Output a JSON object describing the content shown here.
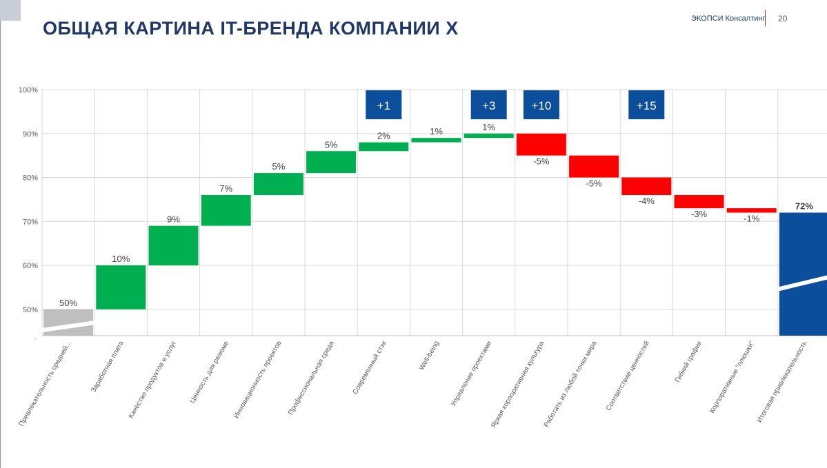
{
  "slide": {
    "title": "ОБЩАЯ КАРТИНА IT-БРЕНДА КОМПАНИИ X",
    "brand": "ЭКОПСИ Консалтинг",
    "page_number": "20"
  },
  "colors": {
    "title": "#1f3864",
    "positive": "#00b050",
    "negative": "#ff0000",
    "base": "#bfbfbf",
    "total": "#0b4f9c",
    "badge": "#0b4f9c",
    "grid": "#d9d9d9"
  },
  "chart_data": {
    "type": "waterfall",
    "title": "",
    "xlabel": "",
    "ylabel": "",
    "ylim": [
      44,
      100
    ],
    "yticks": [
      "100%",
      "90%",
      "80%",
      "70%",
      "60%",
      "50%"
    ],
    "grid": true,
    "categories": [
      "Привлекательность средней...",
      "Заработная плата",
      "Качество продуктов и услуг",
      "Ценность для резюме",
      "Инновационность проектов",
      "Профессиональная среда",
      "Современный стэк",
      "Well-being",
      "Управление проектами",
      "Яркая корпоративная культура",
      "Работать из любой точки мира",
      "Соответствие ценностей",
      "Гибкий график",
      "Корпоративные \"плюшки\"",
      "Итоговая привлекательность"
    ],
    "bars": [
      {
        "kind": "base",
        "start": 44,
        "end": 50,
        "label": "50%"
      },
      {
        "kind": "up",
        "start": 50,
        "end": 60,
        "label": "10%"
      },
      {
        "kind": "up",
        "start": 60,
        "end": 69,
        "label": "9%"
      },
      {
        "kind": "up",
        "start": 69,
        "end": 76,
        "label": "7%"
      },
      {
        "kind": "up",
        "start": 76,
        "end": 81,
        "label": "5%"
      },
      {
        "kind": "up",
        "start": 81,
        "end": 86,
        "label": "5%"
      },
      {
        "kind": "up",
        "start": 86,
        "end": 88,
        "label": "2%"
      },
      {
        "kind": "up",
        "start": 88,
        "end": 89,
        "label": "1%"
      },
      {
        "kind": "up",
        "start": 89,
        "end": 90,
        "label": "1%"
      },
      {
        "kind": "down",
        "start": 90,
        "end": 85,
        "label": "-5%"
      },
      {
        "kind": "down",
        "start": 85,
        "end": 80,
        "label": "-5%"
      },
      {
        "kind": "down",
        "start": 80,
        "end": 76,
        "label": "-4%"
      },
      {
        "kind": "down",
        "start": 76,
        "end": 73,
        "label": "-3%"
      },
      {
        "kind": "down",
        "start": 73,
        "end": 72,
        "label": "-1%"
      },
      {
        "kind": "total",
        "start": 44,
        "end": 72,
        "label": "72%"
      }
    ],
    "badges": [
      {
        "index": 6,
        "label": "+1"
      },
      {
        "index": 8,
        "label": "+3"
      },
      {
        "index": 9,
        "label": "+10"
      },
      {
        "index": 11,
        "label": "+15"
      }
    ]
  }
}
